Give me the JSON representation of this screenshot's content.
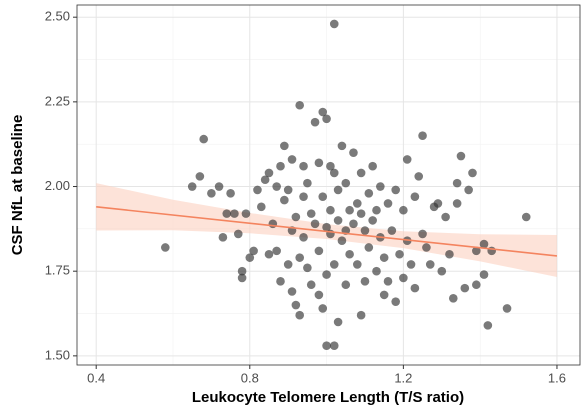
{
  "chart_data": {
    "type": "scatter",
    "x_label": "Leukocyte Telomere Length (T/S ratio)",
    "y_label": "CSF NfL at baseline",
    "xlim": [
      0.35,
      1.66
    ],
    "ylim": [
      1.473,
      2.536
    ],
    "xticks": [
      0.4,
      0.8,
      1.2,
      1.6
    ],
    "yticks": [
      {
        "value": 1.5,
        "label": "1.50"
      },
      {
        "value": 1.75,
        "label": "1.75"
      },
      {
        "value": 2.0,
        "label": "2.00"
      },
      {
        "value": 2.25,
        "label": "2.25"
      },
      {
        "value": 2.5,
        "label": "2.50"
      }
    ],
    "grid": true,
    "point_color": "#333333",
    "x": [
      0.58,
      0.65,
      0.68,
      0.67,
      0.7,
      0.72,
      0.74,
      0.73,
      0.75,
      0.76,
      0.77,
      0.78,
      0.78,
      0.79,
      0.8,
      0.81,
      0.82,
      0.83,
      0.84,
      0.85,
      0.85,
      0.86,
      0.87,
      0.87,
      0.88,
      0.88,
      0.89,
      0.89,
      0.9,
      0.9,
      0.91,
      0.91,
      0.91,
      0.92,
      0.92,
      0.93,
      0.93,
      0.93,
      0.94,
      0.94,
      0.94,
      0.95,
      0.95,
      0.96,
      0.96,
      0.97,
      0.97,
      0.98,
      0.98,
      0.98,
      0.99,
      0.99,
      0.99,
      1.0,
      1.0,
      1.0,
      1.0,
      1.01,
      1.01,
      1.01,
      1.02,
      1.02,
      1.02,
      1.02,
      1.03,
      1.03,
      1.03,
      1.04,
      1.04,
      1.05,
      1.05,
      1.05,
      1.06,
      1.06,
      1.07,
      1.07,
      1.08,
      1.08,
      1.09,
      1.09,
      1.09,
      1.1,
      1.1,
      1.11,
      1.11,
      1.12,
      1.12,
      1.13,
      1.13,
      1.14,
      1.14,
      1.15,
      1.15,
      1.16,
      1.16,
      1.17,
      1.18,
      1.18,
      1.19,
      1.2,
      1.2,
      1.21,
      1.21,
      1.22,
      1.23,
      1.23,
      1.24,
      1.25,
      1.25,
      1.26,
      1.27,
      1.28,
      1.29,
      1.3,
      1.31,
      1.32,
      1.33,
      1.34,
      1.34,
      1.35,
      1.36,
      1.37,
      1.38,
      1.39,
      1.39,
      1.41,
      1.41,
      1.42,
      1.43,
      1.47,
      1.52
    ],
    "y": [
      1.82,
      2.0,
      2.14,
      2.03,
      1.98,
      2.0,
      1.92,
      1.85,
      1.98,
      1.92,
      1.86,
      1.75,
      1.73,
      1.92,
      1.79,
      1.81,
      1.99,
      1.94,
      2.02,
      2.04,
      1.8,
      1.89,
      2.0,
      1.81,
      2.06,
      1.72,
      1.96,
      2.12,
      1.99,
      1.77,
      2.08,
      1.87,
      1.69,
      1.91,
      1.65,
      2.24,
      1.79,
      1.62,
      2.06,
      1.97,
      1.85,
      2.01,
      1.76,
      1.92,
      1.71,
      2.19,
      1.89,
      2.07,
      1.81,
      1.68,
      2.22,
      1.97,
      1.64,
      2.2,
      1.88,
      1.74,
      1.53,
      2.06,
      1.93,
      1.86,
      2.04,
      1.77,
      1.53,
      2.48,
      1.99,
      1.9,
      1.6,
      2.12,
      1.84,
      2.01,
      1.87,
      1.71,
      1.93,
      1.8,
      2.1,
      1.89,
      1.95,
      1.77,
      2.04,
      1.92,
      1.62,
      1.87,
      1.72,
      1.98,
      1.82,
      2.06,
      1.9,
      1.93,
      1.75,
      2.0,
      1.85,
      1.79,
      1.68,
      1.95,
      1.72,
      1.87,
      1.99,
      1.66,
      1.8,
      1.93,
      1.73,
      2.08,
      1.84,
      1.77,
      1.97,
      1.7,
      2.03,
      2.15,
      1.86,
      1.82,
      1.77,
      1.94,
      1.95,
      1.75,
      1.91,
      1.8,
      1.67,
      1.95,
      2.01,
      2.09,
      1.7,
      1.99,
      2.04,
      1.81,
      1.71,
      1.83,
      1.74,
      1.59,
      1.81,
      1.64,
      1.91
    ],
    "fit": {
      "color": "#f4845f",
      "x": [
        0.4,
        1.6
      ],
      "y": [
        1.94,
        1.795
      ]
    },
    "band": {
      "color": "#fbd0bf",
      "x": [
        0.4,
        0.6,
        0.8,
        1.0,
        1.2,
        1.4,
        1.6
      ],
      "lower": [
        1.87,
        1.871,
        1.862,
        1.845,
        1.818,
        1.779,
        1.733
      ],
      "upper": [
        2.01,
        1.961,
        1.922,
        1.889,
        1.868,
        1.859,
        1.857
      ]
    }
  }
}
